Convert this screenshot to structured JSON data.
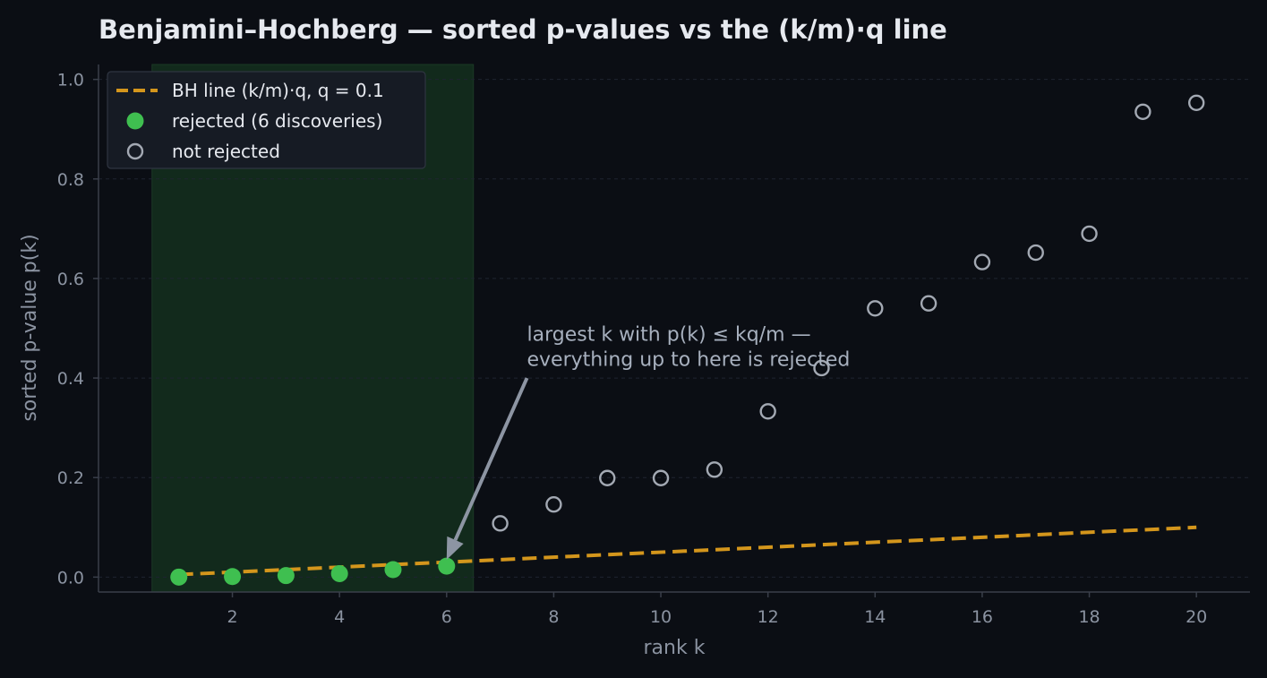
{
  "chart_data": {
    "type": "scatter",
    "title": "Benjamini–Hochberg — sorted p-values vs the (k/m)·q line",
    "xlabel": "rank k",
    "ylabel": "sorted p-value p(k)",
    "xlim": [
      -0.5,
      21
    ],
    "ylim": [
      -0.03,
      1.03
    ],
    "xticks": [
      2,
      4,
      6,
      8,
      10,
      12,
      14,
      16,
      18,
      20
    ],
    "yticks": [
      0.0,
      0.2,
      0.4,
      0.6,
      0.8,
      1.0
    ],
    "ytick_labels": [
      "0.0",
      "0.2",
      "0.4",
      "0.6",
      "0.8",
      "1.0"
    ],
    "grid": "horizontal dotted",
    "legend_position": "top-left",
    "m": 20,
    "q": 0.1,
    "rejected_region": [
      0.5,
      6.5
    ],
    "series": [
      {
        "name": "BH line  (k/m)·q,  q = 0.1",
        "kind": "dashed-line",
        "color": "#d4961c",
        "x": [
          1,
          20
        ],
        "y": [
          0.005,
          0.1
        ]
      },
      {
        "name": "rejected (6 discoveries)",
        "kind": "filled-marker",
        "color": "#3fbf50",
        "x": [
          1,
          2,
          3,
          4,
          5,
          6
        ],
        "y": [
          0.0,
          0.001,
          0.003,
          0.007,
          0.015,
          0.022
        ]
      },
      {
        "name": "not rejected",
        "kind": "hollow-marker",
        "color": "#a3a9b3",
        "x": [
          7,
          8,
          9,
          10,
          11,
          12,
          13,
          14,
          15,
          16,
          17,
          18,
          19,
          20
        ],
        "y": [
          0.108,
          0.146,
          0.199,
          0.199,
          0.216,
          0.333,
          0.42,
          0.54,
          0.55,
          0.633,
          0.652,
          0.69,
          0.935,
          0.953
        ]
      }
    ],
    "annotation": {
      "lines": [
        "largest k with p(k) ≤ kq/m —",
        "everything up to here is rejected"
      ],
      "text_at": [
        7.5,
        0.475
      ],
      "arrow_from": [
        7.5,
        0.4
      ],
      "arrow_to": [
        6,
        0.035
      ]
    },
    "colors": {
      "background": "#0b0e14",
      "axis": "#3a3f4a",
      "grid": "#1f2430",
      "region": "#122a1c",
      "arrow": "#8d95a3",
      "legend_bg": "#161b24",
      "legend_border": "#2f3541"
    }
  }
}
